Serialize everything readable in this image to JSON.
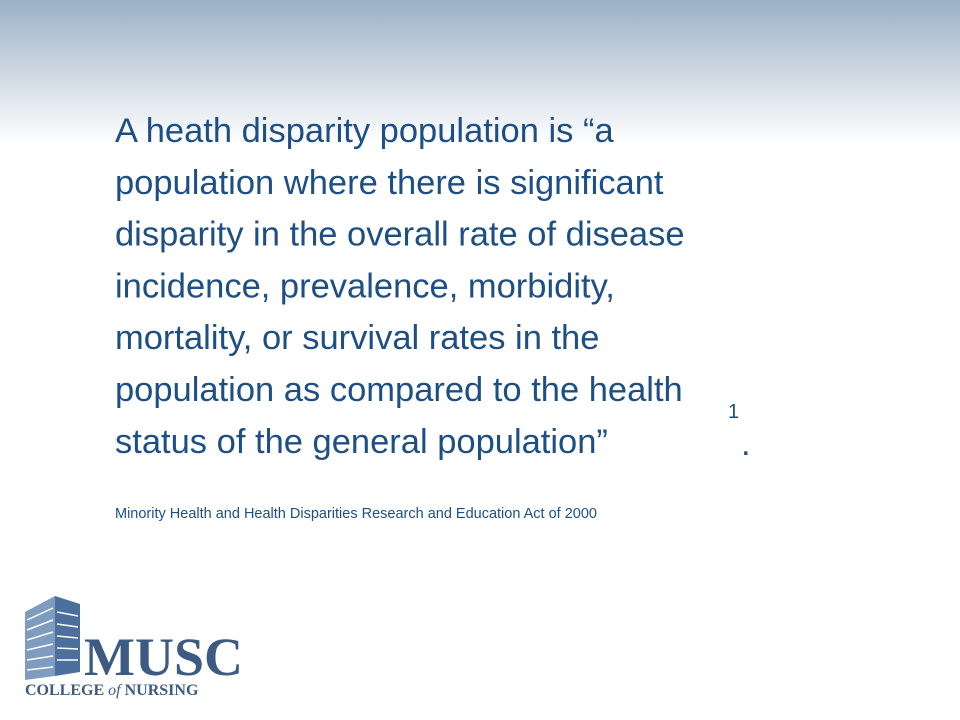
{
  "body": {
    "lines": [
      "A heath disparity population is “a",
      "population where there is significant",
      "disparity in the overall rate of disease",
      "incidence, prevalence, morbidity,",
      "mortality, or survival rates in the",
      "population as compared to the health",
      "status of the general population”"
    ],
    "footnote_marker": "1",
    "end_punctuation": "."
  },
  "citation": "Minority Health and Health Disparities Research and Education Act of 2000",
  "logo": {
    "name": "MUSC",
    "college": "COLLEGE",
    "of": "of",
    "school": "NURSING"
  }
}
